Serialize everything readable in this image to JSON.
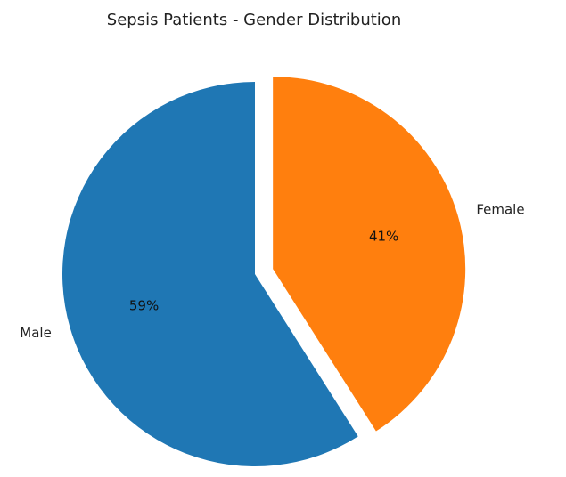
{
  "chart_data": {
    "type": "pie",
    "title": "Sepsis Patients - Gender Distribution",
    "start_angle_deg": 90,
    "counterclock": true,
    "slices": [
      {
        "label": "Male",
        "value": 59,
        "pct_label": "59%",
        "color": "#1f77b4",
        "explode": false
      },
      {
        "label": "Female",
        "value": 41,
        "pct_label": "41%",
        "color": "#ff7f0e",
        "explode": true
      }
    ]
  }
}
